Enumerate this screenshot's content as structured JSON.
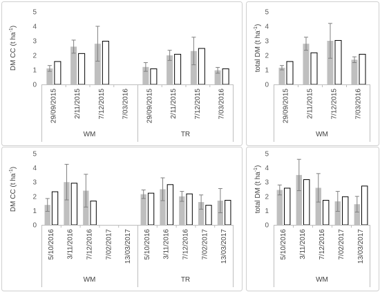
{
  "chart_data": [
    {
      "type": "bar",
      "ylabel": "DM CC (t ha-1)",
      "ylabel_parts": [
        "DM CC (t ha",
        "-1",
        ")"
      ],
      "ylim": [
        0,
        5
      ],
      "yticks": [
        "0",
        "1",
        "2",
        "3",
        "4",
        "5"
      ],
      "groups": [
        {
          "label": "WM",
          "categories": [
            "29/09/2015",
            "2/11/2015",
            "7/12/2015",
            "7/03/2016"
          ]
        },
        {
          "label": "TR",
          "categories": [
            "29/09/2015",
            "2/11/2015",
            "7/12/2015",
            "7/03/2016"
          ]
        }
      ],
      "series": [
        {
          "style": "gray",
          "values": [
            1.1,
            2.6,
            2.8,
            null,
            1.2,
            2.0,
            2.3,
            0.97
          ],
          "errors": [
            0.2,
            0.45,
            1.2,
            null,
            0.3,
            0.35,
            0.95,
            0.2
          ]
        },
        {
          "style": "white",
          "values": [
            1.6,
            2.15,
            3.0,
            null,
            1.1,
            2.1,
            2.5,
            1.1
          ],
          "errors": null
        }
      ]
    },
    {
      "type": "bar",
      "ylabel": "total DM (t ha-1)",
      "ylabel_parts": [
        "total DM (t ha",
        "-1",
        ")"
      ],
      "ylim": [
        0,
        5
      ],
      "yticks": [
        "0",
        "1",
        "2",
        "3",
        "4",
        "5"
      ],
      "groups": [
        {
          "label": "WM",
          "categories": [
            "29/09/2015",
            "2/11/2015",
            "7/12/2015",
            "7/03/2016"
          ]
        }
      ],
      "series": [
        {
          "style": "gray",
          "values": [
            1.15,
            2.8,
            3.0,
            1.7
          ],
          "errors": [
            0.15,
            0.45,
            1.2,
            0.2
          ]
        },
        {
          "style": "white",
          "values": [
            1.6,
            2.2,
            3.05,
            2.1
          ],
          "errors": null
        }
      ]
    },
    {
      "type": "bar",
      "ylabel": "DM CC (t ha-1)",
      "ylabel_parts": [
        "DM CC (t ha",
        "-1",
        ")"
      ],
      "ylim": [
        0,
        5
      ],
      "yticks": [
        "0",
        "1",
        "2",
        "3",
        "4",
        "5"
      ],
      "groups": [
        {
          "label": "WM",
          "categories": [
            "5/10/2016",
            "3/11/2016",
            "7/12/2016",
            "7/02/2017",
            "13/03/2017"
          ]
        },
        {
          "label": "TR",
          "categories": [
            "5/10/2016",
            "3/11/2016",
            "7/12/2016",
            "7/02/2017",
            "13/03/2017"
          ]
        }
      ],
      "series": [
        {
          "style": "gray",
          "values": [
            1.4,
            3.0,
            2.4,
            null,
            null,
            2.15,
            2.5,
            2.0,
            1.6,
            1.7
          ],
          "errors": [
            0.45,
            1.25,
            1.15,
            null,
            null,
            0.3,
            0.8,
            0.35,
            0.5,
            0.85
          ]
        },
        {
          "style": "white",
          "values": [
            2.35,
            2.95,
            1.7,
            null,
            null,
            2.25,
            2.85,
            2.2,
            1.4,
            1.75
          ],
          "errors": null
        }
      ]
    },
    {
      "type": "bar",
      "ylabel": "total DM (t ha-1)",
      "ylabel_parts": [
        "total DM (t ha",
        "-1",
        ")"
      ],
      "ylim": [
        0,
        5
      ],
      "yticks": [
        "0",
        "1",
        "2",
        "3",
        "4",
        "5"
      ],
      "groups": [
        {
          "label": "WM",
          "categories": [
            "5/10/2016",
            "3/11/2016",
            "7/12/2016",
            "7/02/2017",
            "13/03/2017"
          ]
        }
      ],
      "series": [
        {
          "style": "gray",
          "values": [
            2.45,
            3.5,
            2.6,
            1.65,
            1.45
          ],
          "errors": [
            0.35,
            1.1,
            1.0,
            0.7,
            0.55
          ]
        },
        {
          "style": "white",
          "values": [
            2.6,
            3.2,
            1.75,
            2.0,
            2.75
          ],
          "errors": null
        }
      ]
    }
  ],
  "colors": {
    "gray_bar": "#bfbfbf",
    "white_bar_fill": "#ffffff",
    "white_bar_stroke": "#000000",
    "error_bar": "#7f7f7f"
  }
}
